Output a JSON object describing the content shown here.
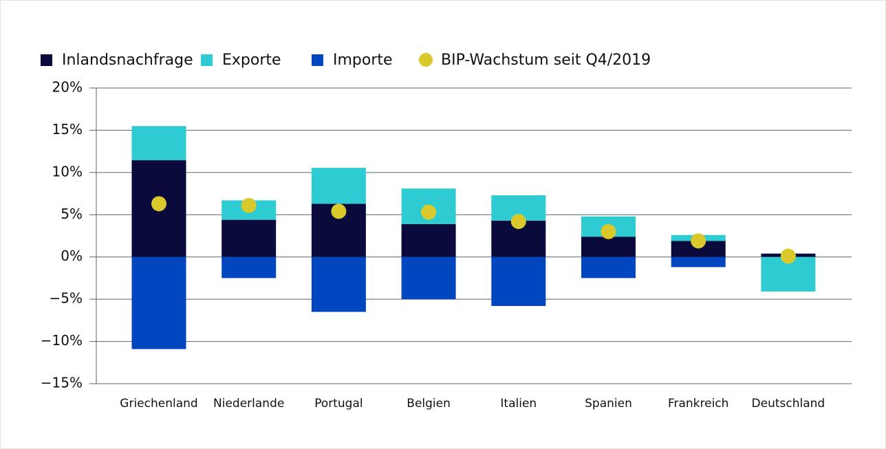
{
  "chart_data": {
    "type": "bar",
    "stacked": true,
    "grid": true,
    "categories": [
      "Griechenland",
      "Niederlande",
      "Portugal",
      "Belgien",
      "Italien",
      "Spanien",
      "Frankreich",
      "Deutschland"
    ],
    "series": [
      {
        "name": "Inlandsnachfrage",
        "type": "bar",
        "color": "#0a0a3c",
        "values": [
          11.45,
          4.4,
          6.3,
          3.9,
          4.3,
          2.4,
          1.9,
          0.4
        ]
      },
      {
        "name": "Exporte",
        "type": "bar",
        "color": "#2ecbd3",
        "values": [
          4.05,
          2.3,
          4.25,
          4.2,
          3.0,
          2.4,
          0.7,
          -4.1
        ]
      },
      {
        "name": "Importe",
        "type": "bar",
        "color": "#0046be",
        "values": [
          -10.9,
          -2.5,
          -6.5,
          -5.0,
          -5.8,
          -2.5,
          -1.2,
          0
        ]
      },
      {
        "name": "BIP-Wachstum seit Q4/2019",
        "type": "scatter",
        "color": "#d9c92a",
        "values": [
          6.3,
          6.1,
          5.4,
          5.3,
          4.2,
          3.0,
          1.9,
          0.1
        ]
      }
    ],
    "ylim": [
      -15,
      20
    ],
    "yticks": [
      {
        "value": -15,
        "label": "−15%"
      },
      {
        "value": -10,
        "label": "−10%"
      },
      {
        "value": -5,
        "label": "−5%"
      },
      {
        "value": 0,
        "label": "0%"
      },
      {
        "value": 5,
        "label": "5%"
      },
      {
        "value": 10,
        "label": "10%"
      },
      {
        "value": 15,
        "label": "15%"
      },
      {
        "value": 20,
        "label": "20%"
      }
    ]
  }
}
